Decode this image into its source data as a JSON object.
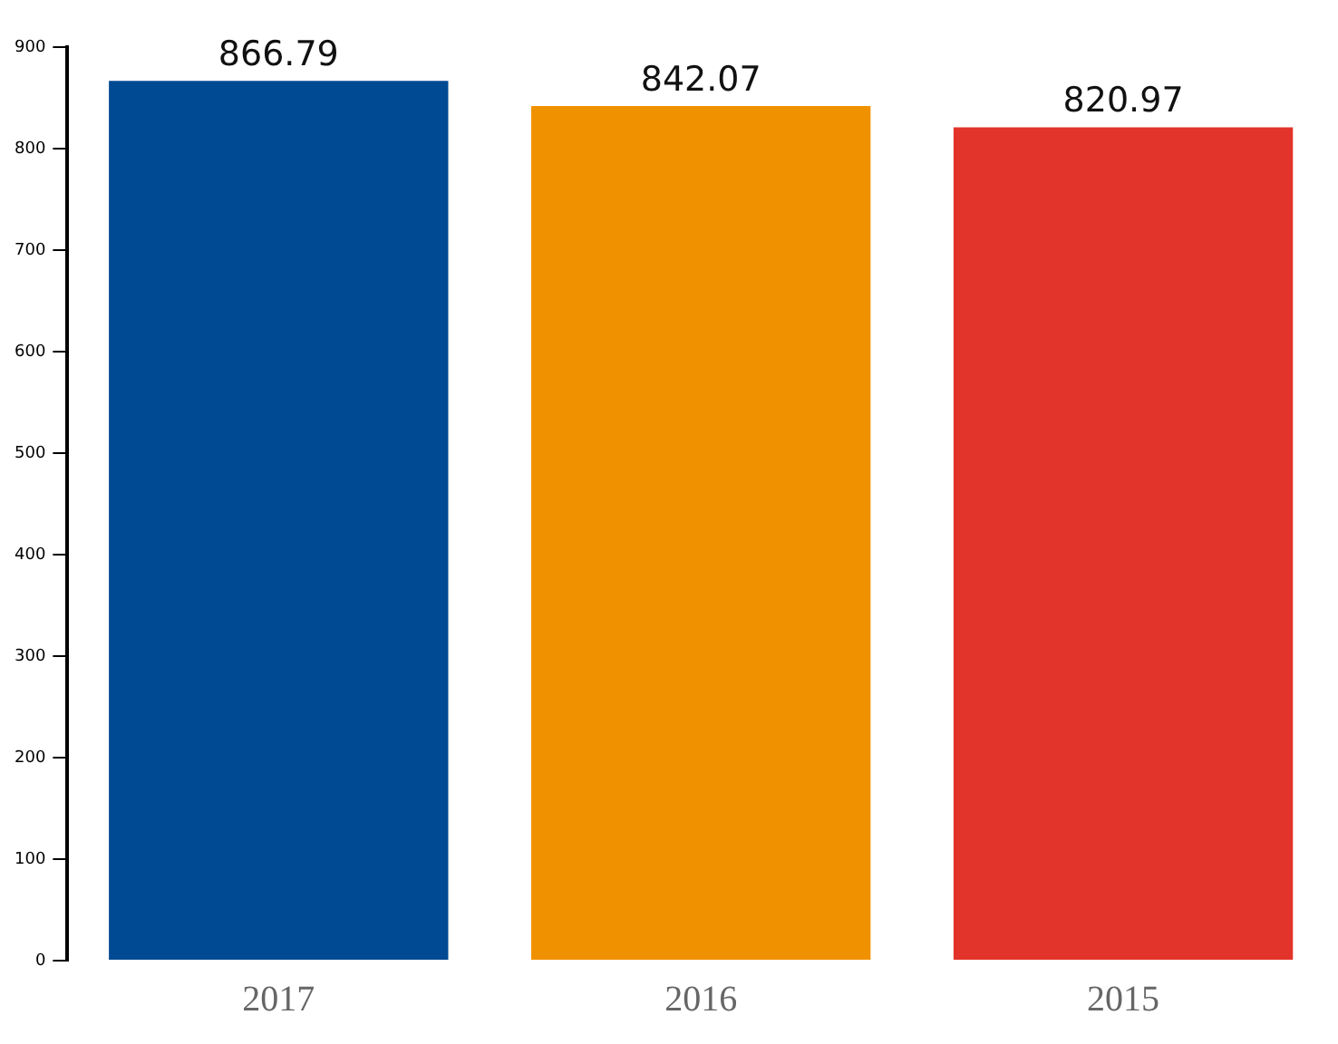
{
  "chart_data": {
    "type": "bar",
    "categories": [
      "2017",
      "2016",
      "2015"
    ],
    "values": [
      866.79,
      842.07,
      820.97
    ],
    "colors": [
      "#004a93",
      "#f09200",
      "#e2342b"
    ],
    "ylim": [
      0,
      900
    ],
    "yticks": [
      0,
      100,
      200,
      300,
      400,
      500,
      600,
      700,
      800,
      900
    ],
    "grid": false,
    "legend": false,
    "data_labels": true
  }
}
